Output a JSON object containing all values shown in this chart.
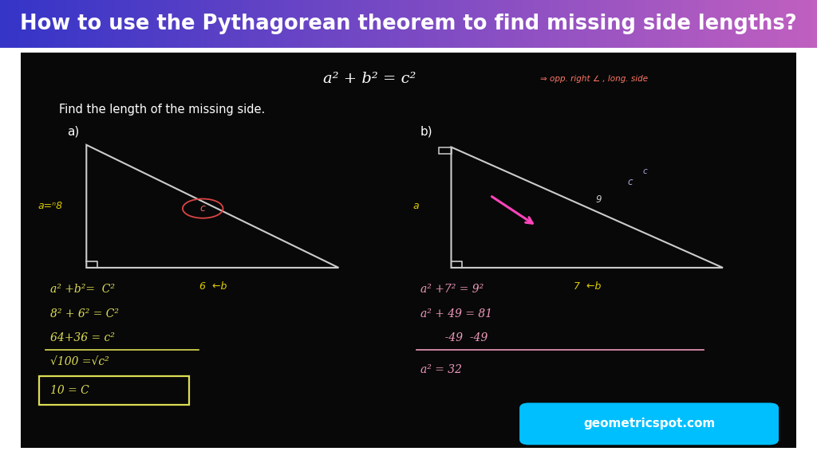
{
  "title": "How to use the Pythagorean theorem to find missing side lengths?",
  "title_bg_left": "#3535c8",
  "title_bg_right": "#c060c0",
  "title_text_color": "#ffffff",
  "title_fontsize": 18.5,
  "board_bg": "#080808",
  "formula_text": "a² + b² = c²",
  "formula_color": "#ffffff",
  "opp_text": "⇒ opp. right ∠ , long. side",
  "opp_color": "#ff7766",
  "find_text": "Find the length of the missing side.",
  "find_color": "#ffffff",
  "label_a": "a)",
  "label_b": "b)",
  "label_color": "#ffffff",
  "triangle_color": "#cccccc",
  "yellow_color": "#ddcc00",
  "pink_color": "#ff55aa",
  "cyan_color": "#00bfff",
  "step_a1": "a² +b²=  C²",
  "step_a2": "8² + 6² = C²",
  "step_a3": "64+36 = c²",
  "step_a4": "√100 =√c²",
  "step_a5": "10 = C",
  "step_b1": "a² +7² = 9²",
  "step_b2": "a² + 49 = 81",
  "step_b3": "       -49  -49",
  "step_b4": "a² = 32",
  "website": "geometricspot.com",
  "website_bg": "#00bfff",
  "website_color": "#ffffff",
  "fig_width": 10.24,
  "fig_height": 5.76,
  "dpi": 100
}
